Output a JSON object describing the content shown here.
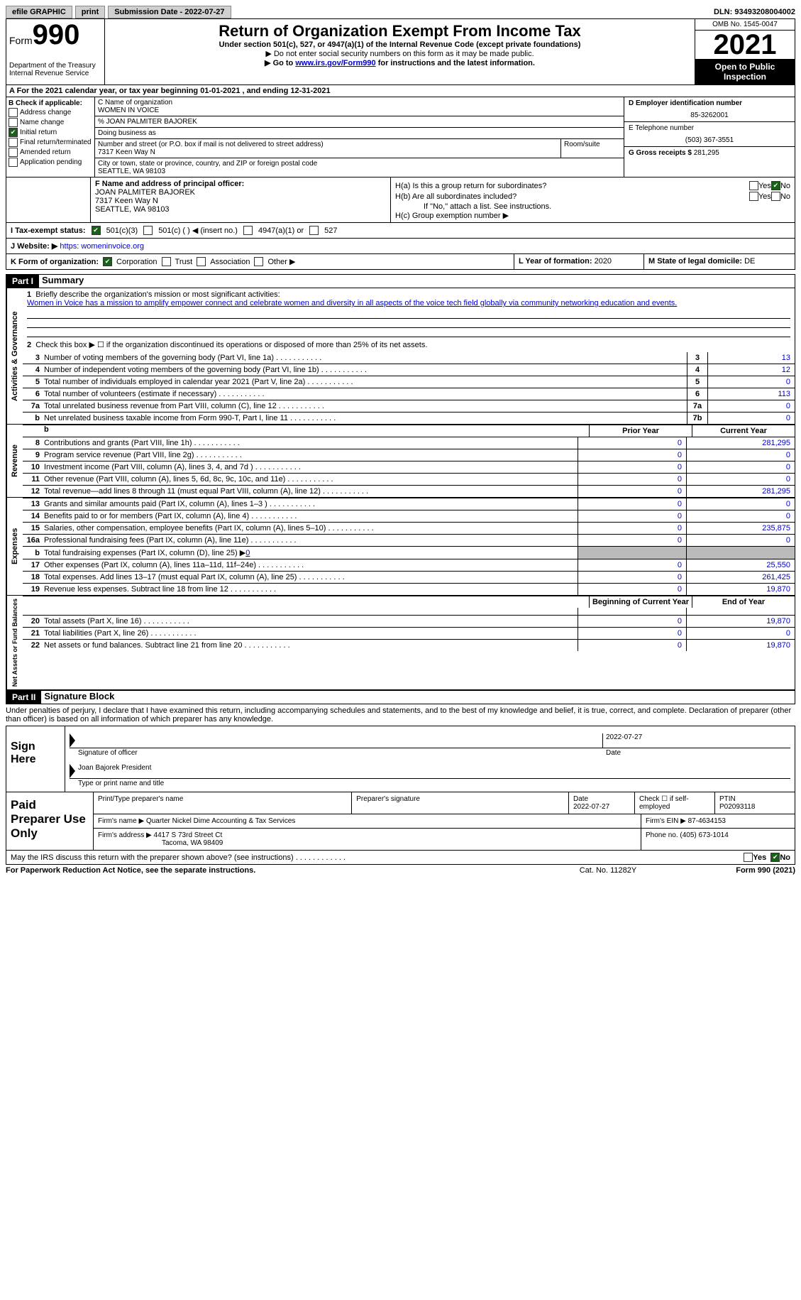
{
  "topbar": {
    "efile": "efile GRAPHIC",
    "print": "print",
    "submission": "Submission Date - 2022-07-27",
    "dln": "DLN: 93493208004002"
  },
  "header": {
    "form": "Form",
    "form_num": "990",
    "dept": "Department of the Treasury Internal Revenue Service",
    "title": "Return of Organization Exempt From Income Tax",
    "subtitle": "Under section 501(c), 527, or 4947(a)(1) of the Internal Revenue Code (except private foundations)",
    "note1": "▶ Do not enter social security numbers on this form as it may be made public.",
    "note2_pre": "▶ Go to ",
    "irs_link": "www.irs.gov/Form990",
    "note2_post": " for instructions and the latest information.",
    "omb": "OMB No. 1545-0047",
    "year": "2021",
    "inspection": "Open to Public Inspection"
  },
  "row_a": "A For the 2021 calendar year, or tax year beginning 01-01-2021   , and ending 12-31-2021",
  "col_b": {
    "heading": "B Check if applicable:",
    "addr_change": "Address change",
    "name_change": "Name change",
    "initial": "Initial return",
    "final": "Final return/terminated",
    "amended": "Amended return",
    "pending": "Application pending"
  },
  "col_c": {
    "name_lbl": "C Name of organization",
    "name": "WOMEN IN VOICE",
    "care_of": "% JOAN PALMITER BAJOREK",
    "dba_lbl": "Doing business as",
    "street_lbl": "Number and street (or P.O. box if mail is not delivered to street address)",
    "room_lbl": "Room/suite",
    "street": "7317 Keen Way N",
    "city_lbl": "City or town, state or province, country, and ZIP or foreign postal code",
    "city": "SEATTLE, WA  98103"
  },
  "col_de": {
    "d_lbl": "D Employer identification number",
    "ein": "85-3262001",
    "e_lbl": "E Telephone number",
    "phone": "(503) 367-3551",
    "g_lbl": "G Gross receipts $",
    "gross": "281,295"
  },
  "col_f": {
    "lbl": "F Name and address of principal officer:",
    "name": "JOAN PALMITER BAJOREK",
    "street": "7317 Keen Way N",
    "city": "SEATTLE, WA  98103"
  },
  "col_h": {
    "ha": "H(a)  Is this a group return for subordinates?",
    "hb": "H(b)  Are all subordinates included?",
    "hb_note": "If \"No,\" attach a list. See instructions.",
    "hc": "H(c)  Group exemption number ▶",
    "yes": "Yes",
    "no": "No"
  },
  "row_i": {
    "lbl": "I   Tax-exempt status:",
    "opt1": "501(c)(3)",
    "opt2": "501(c) (  ) ◀ (insert no.)",
    "opt3": "4947(a)(1) or",
    "opt4": "527"
  },
  "row_j": {
    "lbl": "J   Website: ▶",
    "url": "https: womeninvoice.org"
  },
  "row_k": {
    "lbl": "K Form of organization:",
    "corp": "Corporation",
    "trust": "Trust",
    "assoc": "Association",
    "other": "Other ▶"
  },
  "row_l": {
    "lbl": "L Year of formation:",
    "val": "2020"
  },
  "row_m": {
    "lbl": "M State of legal domicile:",
    "val": "DE"
  },
  "part1": "Part I",
  "summary": "Summary",
  "section_labels": {
    "activities": "Activities & Governance",
    "revenue": "Revenue",
    "expenses": "Expenses",
    "netassets": "Net Assets or Fund Balances"
  },
  "line1_q": "Briefly describe the organization's mission or most significant activities:",
  "line1": "Women in Voice has a mission to amplify empower connect and celebrate women and diversity in all aspects of the voice tech field globally via community networking education and events.",
  "line2": "Check this box ▶ ☐  if the organization discontinued its operations or disposed of more than 25% of its net assets.",
  "lines_gov": [
    {
      "n": "3",
      "d": "Number of voting members of the governing body (Part VI, line 1a)",
      "box": "3",
      "v": "13"
    },
    {
      "n": "4",
      "d": "Number of independent voting members of the governing body (Part VI, line 1b)",
      "box": "4",
      "v": "12"
    },
    {
      "n": "5",
      "d": "Total number of individuals employed in calendar year 2021 (Part V, line 2a)",
      "box": "5",
      "v": "0"
    },
    {
      "n": "6",
      "d": "Total number of volunteers (estimate if necessary)",
      "box": "6",
      "v": "113"
    },
    {
      "n": "7a",
      "d": "Total unrelated business revenue from Part VIII, column (C), line 12",
      "box": "7a",
      "v": "0"
    },
    {
      "n": "b",
      "d": "Net unrelated business taxable income from Form 990-T, Part I, line 11",
      "box": "7b",
      "v": "0"
    }
  ],
  "prior_year": "Prior Year",
  "current_year": "Current Year",
  "lines_rev": [
    {
      "n": "8",
      "d": "Contributions and grants (Part VIII, line 1h)",
      "p": "0",
      "c": "281,295"
    },
    {
      "n": "9",
      "d": "Program service revenue (Part VIII, line 2g)",
      "p": "0",
      "c": "0"
    },
    {
      "n": "10",
      "d": "Investment income (Part VIII, column (A), lines 3, 4, and 7d )",
      "p": "0",
      "c": "0"
    },
    {
      "n": "11",
      "d": "Other revenue (Part VIII, column (A), lines 5, 6d, 8c, 9c, 10c, and 11e)",
      "p": "0",
      "c": "0"
    },
    {
      "n": "12",
      "d": "Total revenue—add lines 8 through 11 (must equal Part VIII, column (A), line 12)",
      "p": "0",
      "c": "281,295"
    }
  ],
  "lines_exp": [
    {
      "n": "13",
      "d": "Grants and similar amounts paid (Part IX, column (A), lines 1–3 )",
      "p": "0",
      "c": "0"
    },
    {
      "n": "14",
      "d": "Benefits paid to or for members (Part IX, column (A), line 4)",
      "p": "0",
      "c": "0"
    },
    {
      "n": "15",
      "d": "Salaries, other compensation, employee benefits (Part IX, column (A), lines 5–10)",
      "p": "0",
      "c": "235,875"
    },
    {
      "n": "16a",
      "d": "Professional fundraising fees (Part IX, column (A), line 11e)",
      "p": "0",
      "c": "0"
    }
  ],
  "line16b": {
    "n": "b",
    "d": "Total fundraising expenses (Part IX, column (D), line 25) ▶",
    "v": "0"
  },
  "lines_exp2": [
    {
      "n": "17",
      "d": "Other expenses (Part IX, column (A), lines 11a–11d, 11f–24e)",
      "p": "0",
      "c": "25,550"
    },
    {
      "n": "18",
      "d": "Total expenses. Add lines 13–17 (must equal Part IX, column (A), line 25)",
      "p": "0",
      "c": "261,425"
    },
    {
      "n": "19",
      "d": "Revenue less expenses. Subtract line 18 from line 12",
      "p": "0",
      "c": "19,870"
    }
  ],
  "beg_year": "Beginning of Current Year",
  "end_year": "End of Year",
  "lines_net": [
    {
      "n": "20",
      "d": "Total assets (Part X, line 16)",
      "p": "0",
      "c": "19,870"
    },
    {
      "n": "21",
      "d": "Total liabilities (Part X, line 26)",
      "p": "0",
      "c": "0"
    },
    {
      "n": "22",
      "d": "Net assets or fund balances. Subtract line 21 from line 20",
      "p": "0",
      "c": "19,870"
    }
  ],
  "part2": "Part II",
  "sigblock": "Signature Block",
  "penalties": "Under penalties of perjury, I declare that I have examined this return, including accompanying schedules and statements, and to the best of my knowledge and belief, it is true, correct, and complete. Declaration of preparer (other than officer) is based on all information of which preparer has any knowledge.",
  "sign_here": "Sign Here",
  "sig_officer": "Signature of officer",
  "sig_date": "Date",
  "sig_date_val": "2022-07-27",
  "sig_name": "Joan Bajorek  President",
  "sig_name_lbl": "Type or print name and title",
  "paid": "Paid Preparer Use Only",
  "prep": {
    "name_lbl": "Print/Type preparer's name",
    "sig_lbl": "Preparer's signature",
    "date_lbl": "Date",
    "date": "2022-07-27",
    "check_lbl": "Check ☐ if self-employed",
    "ptin_lbl": "PTIN",
    "ptin": "P02093118",
    "firm_name_lbl": "Firm's name    ▶",
    "firm_name": "Quarter Nickel Dime Accounting & Tax Services",
    "firm_ein_lbl": "Firm's EIN ▶",
    "firm_ein": "87-4634153",
    "firm_addr_lbl": "Firm's address ▶",
    "firm_addr1": "4417 S 73rd Street Ct",
    "firm_addr2": "Tacoma, WA  98409",
    "phone_lbl": "Phone no.",
    "phone": "(405) 673-1014"
  },
  "discuss": "May the IRS discuss this return with the preparer shown above? (see instructions)",
  "footer": {
    "paperwork": "For Paperwork Reduction Act Notice, see the separate instructions.",
    "cat": "Cat. No. 11282Y",
    "form": "Form 990 (2021)"
  }
}
